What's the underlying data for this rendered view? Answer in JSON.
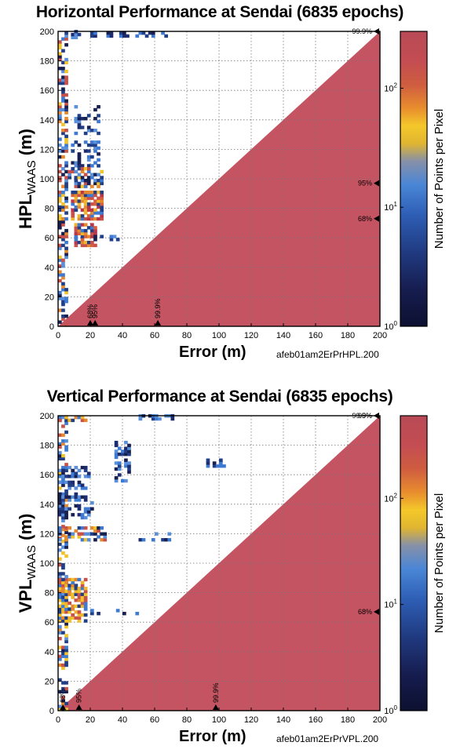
{
  "chart_data": [
    {
      "type": "heatmap",
      "title": "Horizontal Performance at Sendai (6835 epochs)",
      "xlabel": "Error (m)",
      "ylabel_main": "HPL",
      "ylabel_sub": "WAAS",
      "ylabel_unit": " (m)",
      "filename": "afeb01am2ErPrHPL.200",
      "xlim": [
        0,
        200
      ],
      "ylim": [
        0,
        200
      ],
      "xticks": [
        "0",
        "20",
        "40",
        "60",
        "80",
        "100",
        "120",
        "140",
        "160",
        "180",
        "200"
      ],
      "yticks": [
        "0",
        "20",
        "40",
        "60",
        "80",
        "100",
        "120",
        "140",
        "160",
        "180",
        "200"
      ],
      "grid": true,
      "colorbar": {
        "label": "Number of Points per Pixel",
        "scale": "log",
        "range": [
          1,
          300
        ],
        "ticks": [
          {
            "base": "10",
            "exp": "0"
          },
          {
            "base": "10",
            "exp": "1"
          },
          {
            "base": "10",
            "exp": "2"
          }
        ]
      },
      "annotations": {
        "right_markers": [
          {
            "label": "99.9%",
            "y": 200
          },
          {
            "label": "95%",
            "y": 97
          },
          {
            "label": "68%",
            "y": 73
          }
        ],
        "bottom_markers": [
          {
            "label": "68%",
            "x": 20
          },
          {
            "label": "95%",
            "x": 23
          },
          {
            "label": "99.9%",
            "x": 62
          }
        ]
      },
      "clusters": [
        {
          "x": [
            0,
            6
          ],
          "y": [
            0,
            200
          ],
          "level": "mixed"
        },
        {
          "x": [
            8,
            18
          ],
          "y": [
            195,
            200
          ],
          "level": "blue"
        },
        {
          "x": [
            20,
            67
          ],
          "y": [
            196,
            200
          ],
          "level": "lowblue"
        },
        {
          "x": [
            10,
            25
          ],
          "y": [
            130,
            150
          ],
          "level": "blue"
        },
        {
          "x": [
            8,
            26
          ],
          "y": [
            108,
            125
          ],
          "level": "blue"
        },
        {
          "x": [
            6,
            28
          ],
          "y": [
            94,
            108
          ],
          "level": "mixed"
        },
        {
          "x": [
            8,
            27
          ],
          "y": [
            72,
            92
          ],
          "level": "red"
        },
        {
          "x": [
            10,
            24
          ],
          "y": [
            54,
            70
          ],
          "level": "red"
        },
        {
          "x": [
            22,
            38
          ],
          "y": [
            58,
            62
          ],
          "level": "blue"
        }
      ]
    },
    {
      "type": "heatmap",
      "title": "Vertical Performance at Sendai (6835 epochs)",
      "xlabel": "Error (m)",
      "ylabel_main": "VPL",
      "ylabel_sub": "WAAS",
      "ylabel_unit": " (m)",
      "filename": "afeb01am2ErPrVPL.200",
      "xlim": [
        0,
        200
      ],
      "ylim": [
        0,
        200
      ],
      "xticks": [
        "0",
        "20",
        "40",
        "60",
        "80",
        "100",
        "120",
        "140",
        "160",
        "180",
        "200"
      ],
      "yticks": [
        "0",
        "20",
        "40",
        "60",
        "80",
        "100",
        "120",
        "140",
        "160",
        "180",
        "200"
      ],
      "grid": true,
      "colorbar": {
        "label": "Number of Points per Pixel",
        "scale": "log",
        "range": [
          1,
          600
        ],
        "ticks": [
          {
            "base": "10",
            "exp": "0"
          },
          {
            "base": "10",
            "exp": "1"
          },
          {
            "base": "10",
            "exp": "2"
          }
        ]
      },
      "annotations": {
        "right_markers": [
          {
            "label": "99.9%",
            "y": 200
          },
          {
            "label": "95%",
            "y": 200
          },
          {
            "label": "68%",
            "y": 67
          }
        ],
        "bottom_markers": [
          {
            "label": "68%",
            "x": 3
          },
          {
            "label": "95%",
            "x": 13
          },
          {
            "label": "99.9%",
            "x": 98
          }
        ]
      },
      "clusters": [
        {
          "x": [
            0,
            6
          ],
          "y": [
            0,
            200
          ],
          "level": "mixed"
        },
        {
          "x": [
            0,
            18
          ],
          "y": [
            196,
            200
          ],
          "level": "orange"
        },
        {
          "x": [
            50,
            72
          ],
          "y": [
            197,
            200
          ],
          "level": "blue"
        },
        {
          "x": [
            0,
            20
          ],
          "y": [
            150,
            165
          ],
          "level": "blue"
        },
        {
          "x": [
            0,
            22
          ],
          "y": [
            130,
            148
          ],
          "level": "blue"
        },
        {
          "x": [
            0,
            30
          ],
          "y": [
            115,
            125
          ],
          "level": "mixed"
        },
        {
          "x": [
            50,
            72
          ],
          "y": [
            115,
            121
          ],
          "level": "blue"
        },
        {
          "x": [
            0,
            18
          ],
          "y": [
            60,
            90
          ],
          "level": "orange"
        },
        {
          "x": [
            20,
            50
          ],
          "y": [
            65,
            68
          ],
          "level": "lowblue"
        },
        {
          "x": [
            35,
            45
          ],
          "y": [
            155,
            182
          ],
          "level": "blue"
        },
        {
          "x": [
            92,
            105
          ],
          "y": [
            165,
            170
          ],
          "level": "blue"
        }
      ]
    }
  ]
}
